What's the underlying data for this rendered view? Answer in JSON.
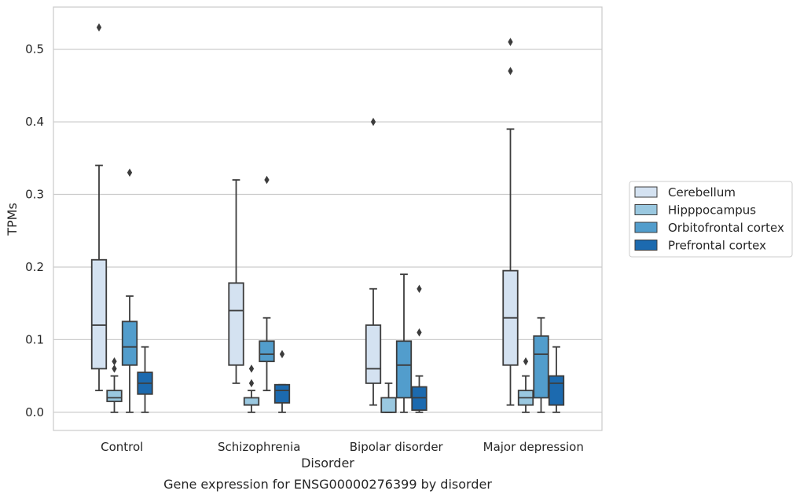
{
  "chart_data": {
    "type": "box",
    "title": "",
    "caption": "Gene expression for ENSG00000276399 by disorder",
    "xlabel": "Disorder",
    "ylabel": "TPMs",
    "ylim": [
      -0.025,
      0.558
    ],
    "yticks": [
      0.0,
      0.1,
      0.2,
      0.3,
      0.4,
      0.5
    ],
    "ytick_labels": [
      "0.0",
      "0.1",
      "0.2",
      "0.3",
      "0.4",
      "0.5"
    ],
    "grid": "horizontal",
    "legend_position": "right",
    "categories": [
      "Control",
      "Schizophrenia",
      "Bipolar disorder",
      "Major depression"
    ],
    "series": [
      {
        "name": "Cerebellum",
        "color": "#d4e2f1",
        "boxes": [
          {
            "whisker_low": 0.03,
            "q1": 0.06,
            "median": 0.12,
            "q3": 0.21,
            "whisker_high": 0.34,
            "outliers": [
              0.53
            ]
          },
          {
            "whisker_low": 0.04,
            "q1": 0.065,
            "median": 0.14,
            "q3": 0.178,
            "whisker_high": 0.32,
            "outliers": []
          },
          {
            "whisker_low": 0.01,
            "q1": 0.04,
            "median": 0.06,
            "q3": 0.12,
            "whisker_high": 0.17,
            "outliers": [
              0.4
            ]
          },
          {
            "whisker_low": 0.01,
            "q1": 0.065,
            "median": 0.13,
            "q3": 0.195,
            "whisker_high": 0.39,
            "outliers": [
              0.47,
              0.51
            ]
          }
        ]
      },
      {
        "name": "Hipppocampus",
        "color": "#9ac8e0",
        "boxes": [
          {
            "whisker_low": 0.0,
            "q1": 0.015,
            "median": 0.02,
            "q3": 0.03,
            "whisker_high": 0.05,
            "outliers": [
              0.06,
              0.07
            ]
          },
          {
            "whisker_low": 0.0,
            "q1": 0.01,
            "median": 0.01,
            "q3": 0.02,
            "whisker_high": 0.03,
            "outliers": [
              0.04,
              0.06
            ]
          },
          {
            "whisker_low": 0.0,
            "q1": 0.0,
            "median": 0.0,
            "q3": 0.02,
            "whisker_high": 0.04,
            "outliers": []
          },
          {
            "whisker_low": 0.0,
            "q1": 0.01,
            "median": 0.02,
            "q3": 0.03,
            "whisker_high": 0.05,
            "outliers": [
              0.07
            ]
          }
        ]
      },
      {
        "name": "Orbitofrontal cortex",
        "color": "#529dcc",
        "boxes": [
          {
            "whisker_low": 0.0,
            "q1": 0.065,
            "median": 0.09,
            "q3": 0.125,
            "whisker_high": 0.16,
            "outliers": [
              0.33
            ]
          },
          {
            "whisker_low": 0.03,
            "q1": 0.07,
            "median": 0.08,
            "q3": 0.098,
            "whisker_high": 0.13,
            "outliers": [
              0.32
            ]
          },
          {
            "whisker_low": 0.0,
            "q1": 0.02,
            "median": 0.065,
            "q3": 0.098,
            "whisker_high": 0.19,
            "outliers": []
          },
          {
            "whisker_low": 0.0,
            "q1": 0.02,
            "median": 0.08,
            "q3": 0.105,
            "whisker_high": 0.13,
            "outliers": []
          }
        ]
      },
      {
        "name": "Prefrontal cortex",
        "color": "#1c6aaf",
        "boxes": [
          {
            "whisker_low": 0.0,
            "q1": 0.025,
            "median": 0.04,
            "q3": 0.055,
            "whisker_high": 0.09,
            "outliers": []
          },
          {
            "whisker_low": 0.0,
            "q1": 0.013,
            "median": 0.03,
            "q3": 0.038,
            "whisker_high": 0.038,
            "outliers": [
              0.08
            ]
          },
          {
            "whisker_low": 0.0,
            "q1": 0.003,
            "median": 0.02,
            "q3": 0.035,
            "whisker_high": 0.05,
            "outliers": [
              0.11,
              0.17
            ]
          },
          {
            "whisker_low": 0.0,
            "q1": 0.01,
            "median": 0.04,
            "q3": 0.05,
            "whisker_high": 0.09,
            "outliers": []
          }
        ]
      }
    ]
  }
}
